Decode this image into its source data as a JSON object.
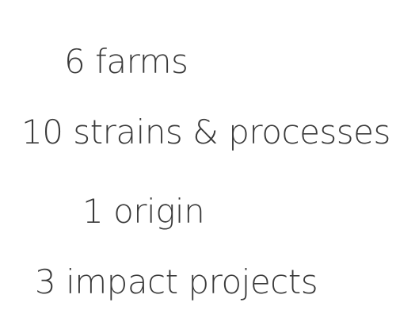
{
  "stats": [
    {
      "text": "6 farms"
    },
    {
      "text": "10 strains & processes"
    },
    {
      "text": "1 origin"
    },
    {
      "text": "3 impact projects"
    }
  ]
}
